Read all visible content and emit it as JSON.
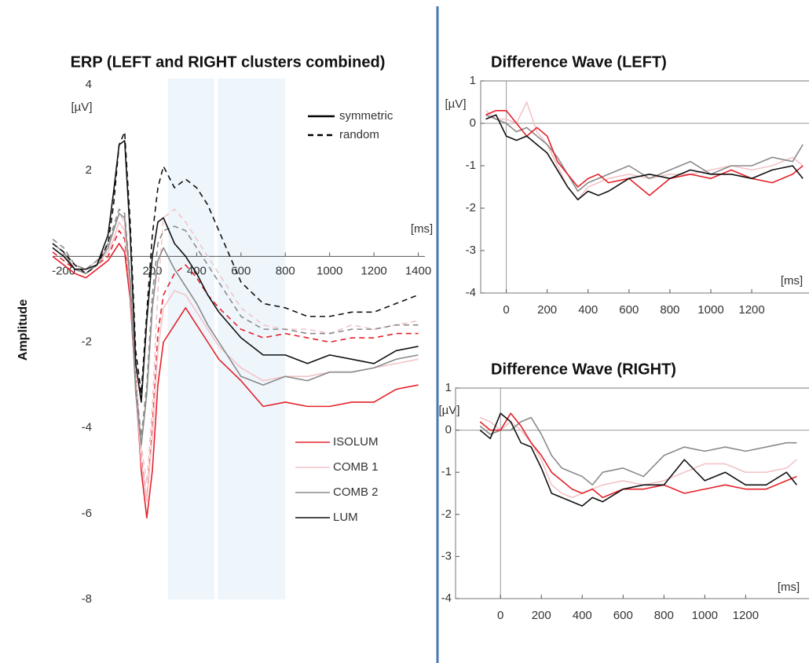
{
  "chart_data": [
    {
      "type": "line",
      "title": "ERP (LEFT and RIGHT clusters combined)",
      "ylabel": "Amplitude",
      "y_unit": "[µV]",
      "x_unit": "[ms]",
      "frame": false,
      "xlim": [
        -250,
        1430
      ],
      "ylim": [
        -8,
        4
      ],
      "xticks": [
        -200,
        200,
        400,
        600,
        800,
        1000,
        1200,
        1400
      ],
      "yticks": [
        4,
        2,
        -2,
        -4,
        -6,
        -8
      ],
      "shaded": [
        [
          270,
          480
        ],
        [
          495,
          800
        ]
      ],
      "shade_color": "#eef6fc",
      "legend_styles": [
        {
          "name": "symmetric",
          "dash": "solid"
        },
        {
          "name": "random",
          "dash": "dashed"
        }
      ],
      "x": [
        -250,
        -200,
        -150,
        -100,
        -50,
        0,
        25,
        50,
        75,
        100,
        125,
        150,
        175,
        200,
        225,
        250,
        300,
        350,
        400,
        450,
        500,
        600,
        700,
        800,
        900,
        1000,
        1100,
        1200,
        1300,
        1400
      ],
      "series": [
        {
          "name": "ISOLUM",
          "color": "#e4222a",
          "lines": [
            {
              "values": [
                0.0,
                -0.2,
                -0.4,
                -0.5,
                -0.3,
                -0.1,
                0.1,
                0.3,
                0.1,
                -1.0,
                -3.0,
                -5.0,
                -6.1,
                -5.0,
                -3.0,
                -2.0,
                -1.6,
                -1.2,
                -1.6,
                -2.0,
                -2.4,
                -2.9,
                -3.5,
                -3.4,
                -3.5,
                -3.5,
                -3.4,
                -3.4,
                -3.1,
                -3.0
              ]
            },
            {
              "values": [
                0.1,
                -0.1,
                -0.3,
                -0.4,
                -0.2,
                0.0,
                0.3,
                0.6,
                0.4,
                -0.8,
                -2.8,
                -4.7,
                -5.7,
                -4.0,
                -1.8,
                -0.9,
                -0.4,
                -0.2,
                -0.5,
                -0.9,
                -1.2,
                -1.7,
                -1.9,
                -1.8,
                -1.9,
                -2.0,
                -1.9,
                -1.9,
                -1.8,
                -1.8
              ]
            }
          ]
        },
        {
          "name": "COMB 1",
          "color": "#f2c4c8",
          "lines": [
            {
              "values": [
                0.2,
                0.0,
                -0.3,
                -0.4,
                -0.2,
                0.1,
                0.4,
                0.8,
                0.6,
                -0.8,
                -3.0,
                -4.8,
                -5.7,
                -4.2,
                -2.2,
                -1.2,
                -0.8,
                -0.9,
                -1.3,
                -1.7,
                -2.1,
                -2.6,
                -2.9,
                -2.8,
                -2.8,
                -2.7,
                -2.7,
                -2.6,
                -2.5,
                -2.4
              ]
            },
            {
              "values": [
                0.3,
                0.1,
                -0.2,
                -0.3,
                -0.1,
                0.2,
                0.6,
                1.0,
                0.8,
                -0.5,
                -2.7,
                -4.4,
                -5.3,
                -3.5,
                -0.8,
                0.9,
                1.1,
                0.8,
                0.4,
                0.0,
                -0.4,
                -1.2,
                -1.6,
                -1.7,
                -1.7,
                -1.8,
                -1.6,
                -1.7,
                -1.6,
                -1.5
              ]
            }
          ]
        },
        {
          "name": "COMB 2",
          "color": "#8a8a8a",
          "lines": [
            {
              "values": [
                0.3,
                0.1,
                -0.3,
                -0.4,
                -0.2,
                0.2,
                0.6,
                1.0,
                0.9,
                -0.6,
                -3.2,
                -4.4,
                -3.2,
                -1.2,
                -0.1,
                0.2,
                -0.3,
                -0.7,
                -1.1,
                -1.6,
                -2.0,
                -2.8,
                -3.0,
                -2.8,
                -2.9,
                -2.7,
                -2.7,
                -2.6,
                -2.4,
                -2.3
              ]
            },
            {
              "values": [
                0.4,
                0.2,
                -0.2,
                -0.3,
                -0.1,
                0.3,
                0.7,
                1.1,
                1.0,
                -0.5,
                -3.0,
                -4.2,
                -3.0,
                -0.9,
                0.3,
                0.6,
                0.7,
                0.6,
                0.2,
                -0.2,
                -0.6,
                -1.4,
                -1.7,
                -1.7,
                -1.8,
                -1.8,
                -1.7,
                -1.7,
                -1.6,
                -1.6
              ]
            }
          ]
        },
        {
          "name": "LUM",
          "color": "#111111",
          "lines": [
            {
              "values": [
                0.2,
                0.0,
                -0.3,
                -0.3,
                -0.2,
                0.5,
                1.5,
                2.6,
                2.7,
                0.5,
                -2.5,
                -3.4,
                -1.5,
                0.0,
                0.8,
                0.9,
                0.3,
                0.0,
                -0.4,
                -0.9,
                -1.3,
                -1.9,
                -2.3,
                -2.3,
                -2.5,
                -2.3,
                -2.4,
                -2.5,
                -2.2,
                -2.1
              ]
            },
            {
              "values": [
                0.3,
                0.1,
                -0.2,
                -0.4,
                -0.2,
                0.3,
                1.2,
                2.6,
                2.9,
                0.8,
                -2.2,
                -3.2,
                -1.3,
                0.5,
                1.6,
                2.1,
                1.6,
                1.8,
                1.6,
                1.2,
                0.6,
                -0.6,
                -1.1,
                -1.2,
                -1.4,
                -1.4,
                -1.3,
                -1.3,
                -1.1,
                -0.9
              ]
            }
          ]
        }
      ]
    },
    {
      "type": "line",
      "title": "Difference Wave (LEFT)",
      "y_unit": "[µV]",
      "x_unit": "[ms]",
      "frame": true,
      "xlim": [
        -125,
        1480
      ],
      "ylim": [
        -4,
        1
      ],
      "xticks": [
        0,
        200,
        400,
        600,
        800,
        1000,
        1200
      ],
      "yticks": [
        1,
        0,
        -1,
        -2,
        -3,
        -4
      ],
      "x": [
        -100,
        -50,
        0,
        50,
        100,
        150,
        200,
        250,
        300,
        350,
        400,
        450,
        500,
        600,
        700,
        800,
        900,
        1000,
        1100,
        1200,
        1300,
        1400,
        1450
      ],
      "series": [
        {
          "color": "#f2c4c8",
          "values": [
            0.3,
            0.1,
            0.1,
            0.0,
            0.5,
            -0.2,
            -0.5,
            -1.0,
            -1.5,
            -1.8,
            -1.5,
            -1.4,
            -1.3,
            -1.2,
            -1.3,
            -1.2,
            -1.2,
            -1.1,
            -1.0,
            -1.1,
            -1.0,
            -0.8,
            -1.0
          ]
        },
        {
          "color": "#8a8a8a",
          "values": [
            0.2,
            0.1,
            0.0,
            -0.2,
            -0.1,
            -0.3,
            -0.5,
            -0.8,
            -1.2,
            -1.6,
            -1.4,
            -1.3,
            -1.2,
            -1.0,
            -1.3,
            -1.1,
            -0.9,
            -1.2,
            -1.0,
            -1.0,
            -0.8,
            -0.9,
            -0.5
          ]
        },
        {
          "color": "#e4222a",
          "values": [
            0.2,
            0.3,
            0.3,
            0.0,
            -0.3,
            -0.1,
            -0.3,
            -0.9,
            -1.2,
            -1.5,
            -1.3,
            -1.2,
            -1.4,
            -1.3,
            -1.7,
            -1.3,
            -1.2,
            -1.3,
            -1.1,
            -1.3,
            -1.4,
            -1.2,
            -1.0
          ]
        },
        {
          "color": "#111111",
          "values": [
            0.1,
            0.2,
            -0.3,
            -0.4,
            -0.3,
            -0.5,
            -0.7,
            -1.1,
            -1.5,
            -1.8,
            -1.6,
            -1.7,
            -1.6,
            -1.3,
            -1.2,
            -1.3,
            -1.1,
            -1.2,
            -1.2,
            -1.3,
            -1.1,
            -1.0,
            -1.3
          ]
        }
      ]
    },
    {
      "type": "line",
      "title": "Difference Wave (RIGHT)",
      "y_unit": "[µV]",
      "x_unit": "[ms]",
      "frame": true,
      "xlim": [
        -220,
        1510
      ],
      "ylim": [
        -4,
        1
      ],
      "xticks": [
        0,
        200,
        400,
        600,
        800,
        1000,
        1200
      ],
      "yticks": [
        1,
        0,
        -1,
        -2,
        -3,
        -4
      ],
      "x": [
        -100,
        -50,
        0,
        50,
        100,
        150,
        200,
        250,
        300,
        350,
        400,
        450,
        500,
        600,
        700,
        800,
        900,
        1000,
        1100,
        1200,
        1300,
        1400,
        1450
      ],
      "series": [
        {
          "color": "#f2c4c8",
          "values": [
            0.3,
            0.2,
            0.0,
            0.2,
            0.0,
            -0.3,
            -0.7,
            -1.3,
            -1.5,
            -1.6,
            -1.5,
            -1.4,
            -1.3,
            -1.2,
            -1.3,
            -1.2,
            -1.0,
            -0.8,
            -0.8,
            -1.0,
            -1.0,
            -0.9,
            -0.7
          ]
        },
        {
          "color": "#8a8a8a",
          "values": [
            0.1,
            -0.1,
            0.0,
            0.0,
            0.2,
            0.3,
            -0.1,
            -0.6,
            -0.9,
            -1.0,
            -1.1,
            -1.3,
            -1.0,
            -0.9,
            -1.1,
            -0.6,
            -0.4,
            -0.5,
            -0.4,
            -0.5,
            -0.4,
            -0.3,
            -0.3
          ]
        },
        {
          "color": "#e4222a",
          "values": [
            0.2,
            0.0,
            0.0,
            0.4,
            0.1,
            -0.3,
            -0.6,
            -1.0,
            -1.2,
            -1.4,
            -1.5,
            -1.4,
            -1.6,
            -1.4,
            -1.4,
            -1.3,
            -1.5,
            -1.4,
            -1.3,
            -1.4,
            -1.4,
            -1.2,
            -1.1
          ]
        },
        {
          "color": "#111111",
          "values": [
            0.0,
            -0.2,
            0.4,
            0.2,
            -0.3,
            -0.4,
            -0.9,
            -1.5,
            -1.6,
            -1.7,
            -1.8,
            -1.6,
            -1.7,
            -1.4,
            -1.3,
            -1.3,
            -0.7,
            -1.2,
            -1.0,
            -1.3,
            -1.3,
            -1.0,
            -1.3
          ]
        }
      ]
    }
  ]
}
